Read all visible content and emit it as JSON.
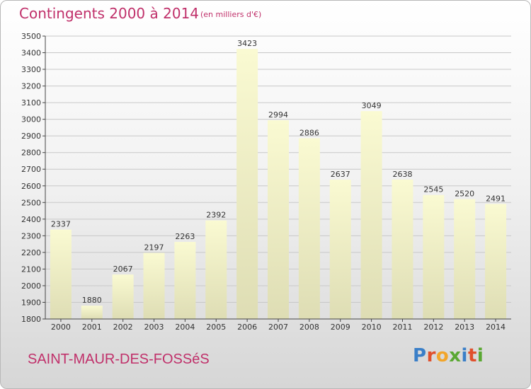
{
  "title": "Contingents 2000 à 2014",
  "subtitle": "(en milliers d'€)",
  "city": "SAINT-MAUR-DES-FOSSéS",
  "logo": {
    "text": "Proxiti",
    "letter_colors": [
      "#3a7fc8",
      "#e0502c",
      "#f2a52a",
      "#5aa832",
      "#3a7fc8",
      "#e0502c",
      "#5aa832"
    ]
  },
  "colors": {
    "bar_top": "#fafad2",
    "bar_bottom": "#deddb4",
    "grid": "#c8c8c8",
    "axis": "#444444",
    "text": "#333333",
    "accent": "#c0306a"
  },
  "chart_data": {
    "type": "bar",
    "title": "Contingents 2000 à 2014",
    "subtitle": "(en milliers d'€)",
    "categories": [
      "2000",
      "2001",
      "2002",
      "2003",
      "2004",
      "2005",
      "2006",
      "2007",
      "2008",
      "2009",
      "2010",
      "2011",
      "2012",
      "2013",
      "2014"
    ],
    "values": [
      2337,
      1880,
      2067,
      2197,
      2263,
      2392,
      3423,
      2994,
      2886,
      2637,
      3049,
      2638,
      2545,
      2520,
      2491
    ],
    "ylim": [
      1800,
      3500
    ],
    "yticks": [
      1800,
      1900,
      2000,
      2100,
      2200,
      2300,
      2400,
      2500,
      2600,
      2700,
      2800,
      2900,
      3000,
      3100,
      3200,
      3300,
      3400,
      3500
    ],
    "grid": true,
    "data_labels": true,
    "xlabel": "",
    "ylabel": ""
  }
}
